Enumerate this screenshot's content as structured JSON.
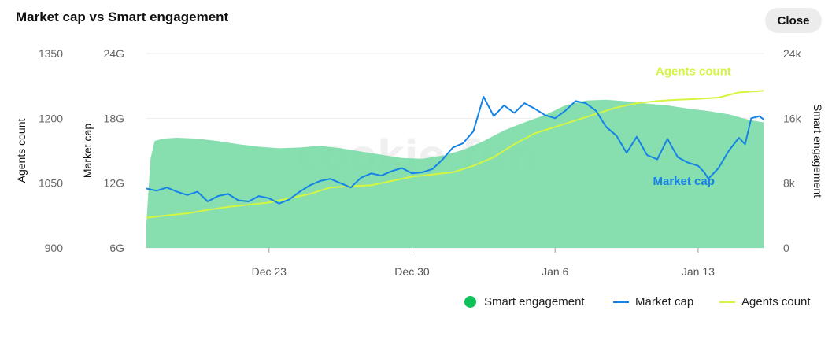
{
  "header": {
    "title": "Market cap vs Smart engagement",
    "close_label": "Close"
  },
  "legend": [
    {
      "label": "Smart engagement",
      "marker": "dot",
      "color": "#10c05a"
    },
    {
      "label": "Market cap",
      "marker": "line",
      "color": "#1583e8"
    },
    {
      "label": "Agents count",
      "marker": "line",
      "color": "#d4f542"
    }
  ],
  "watermark": "cookie.fun",
  "chart_data": {
    "type": "line",
    "title": "Market cap vs Smart engagement",
    "x_ticks": [
      "Dec 23",
      "Dec 30",
      "Jan 6",
      "Jan 13"
    ],
    "x_tick_days": [
      6,
      13,
      20,
      27
    ],
    "x_range_days": [
      0,
      30.2
    ],
    "x_day0": "Dec 17",
    "axes": {
      "agents_count": {
        "label": "Agents count",
        "position": "left-outer",
        "range": [
          900,
          1350
        ],
        "ticks": [
          "900",
          "1050",
          "1200",
          "1350"
        ],
        "tick_values": [
          900,
          1050,
          1200,
          1350
        ]
      },
      "market_cap": {
        "label": "Market cap",
        "position": "left-inner",
        "range": [
          6,
          24
        ],
        "unit": "G",
        "ticks": [
          "6G",
          "12G",
          "18G",
          "24G"
        ],
        "tick_values": [
          6,
          12,
          18,
          24
        ]
      },
      "smart_engagement": {
        "label": "Smart engagement",
        "position": "right",
        "range": [
          0,
          24
        ],
        "unit": "k",
        "ticks": [
          "0",
          "8k",
          "16k",
          "24k"
        ],
        "tick_values": [
          0,
          8,
          16,
          24
        ]
      }
    },
    "grid": true,
    "series": [
      {
        "name": "Smart engagement",
        "type": "area",
        "axis": "smart_engagement",
        "color": "#10c05a",
        "x": [
          0,
          0.2,
          0.4,
          0.8,
          1.5,
          2.5,
          3.5,
          4.5,
          5.5,
          6.5,
          7.5,
          8.5,
          9.5,
          10.5,
          11.5,
          12.5,
          13.5,
          14.5,
          15.5,
          16.5,
          17.5,
          18.5,
          19.5,
          20.5,
          21.5,
          22.5,
          23.5,
          24.5,
          25.5,
          26.5,
          27.5,
          28.5,
          29.5,
          30.2
        ],
        "values": [
          3.0,
          11.0,
          13.2,
          13.5,
          13.6,
          13.5,
          13.2,
          12.8,
          12.5,
          12.3,
          12.4,
          12.6,
          12.3,
          11.9,
          11.5,
          11.1,
          11.0,
          11.4,
          12.1,
          13.2,
          14.5,
          15.5,
          16.4,
          17.6,
          18.2,
          18.3,
          18.1,
          17.8,
          17.6,
          17.2,
          16.9,
          16.5,
          15.8,
          15.5
        ]
      },
      {
        "name": "Market cap",
        "type": "line",
        "axis": "market_cap",
        "color": "#1583e8",
        "x": [
          0,
          0.5,
          1.0,
          1.5,
          2.0,
          2.5,
          3.0,
          3.5,
          4.0,
          4.5,
          5.0,
          5.5,
          6.0,
          6.5,
          7.0,
          7.5,
          8.0,
          8.5,
          9.0,
          9.5,
          10.0,
          10.5,
          11.0,
          11.5,
          12.0,
          12.5,
          13.0,
          13.5,
          14.0,
          14.5,
          15.0,
          15.5,
          16.0,
          16.5,
          17.0,
          17.5,
          18.0,
          18.5,
          19.0,
          19.5,
          20.0,
          20.5,
          21.0,
          21.5,
          22.0,
          22.5,
          23.0,
          23.5,
          24.0,
          24.5,
          25.0,
          25.5,
          26.0,
          26.5,
          27.0,
          27.3,
          27.5,
          28.0,
          28.5,
          29.0,
          29.3,
          29.6,
          30.0,
          30.2
        ],
        "values": [
          11.5,
          11.3,
          11.6,
          11.2,
          10.9,
          11.2,
          10.3,
          10.8,
          11.0,
          10.4,
          10.3,
          10.8,
          10.6,
          10.1,
          10.5,
          11.2,
          11.8,
          12.2,
          12.4,
          12.0,
          11.6,
          12.5,
          12.9,
          12.7,
          13.1,
          13.4,
          12.9,
          13.0,
          13.3,
          14.2,
          15.3,
          15.7,
          16.8,
          20.0,
          18.2,
          19.2,
          18.5,
          19.4,
          18.9,
          18.3,
          18.0,
          18.7,
          19.6,
          19.4,
          18.7,
          17.2,
          16.4,
          14.8,
          16.3,
          14.6,
          14.2,
          16.1,
          14.4,
          13.9,
          13.6,
          13.0,
          12.4,
          13.4,
          15.0,
          16.2,
          15.6,
          18.0,
          18.2,
          17.9
        ]
      },
      {
        "name": "Agents count",
        "type": "line",
        "axis": "agents_count",
        "color": "#d4f542",
        "x": [
          0,
          1,
          2,
          3,
          4,
          5,
          6,
          7,
          8,
          9,
          10,
          11,
          12,
          13,
          14,
          15,
          16,
          17,
          18,
          19,
          20,
          21,
          22,
          23,
          24,
          25,
          26,
          27,
          28,
          29,
          30,
          30.2
        ],
        "values": [
          970,
          975,
          980,
          988,
          995,
          1000,
          1005,
          1015,
          1025,
          1040,
          1043,
          1045,
          1055,
          1065,
          1070,
          1075,
          1090,
          1110,
          1140,
          1165,
          1180,
          1195,
          1210,
          1225,
          1235,
          1240,
          1243,
          1245,
          1248,
          1260,
          1263,
          1264
        ]
      }
    ],
    "annotations": [
      {
        "text": "Agents count",
        "series": "Agents count",
        "color": "#d4f542"
      },
      {
        "text": "Market cap",
        "series": "Market cap",
        "color": "#1583e8"
      }
    ]
  }
}
